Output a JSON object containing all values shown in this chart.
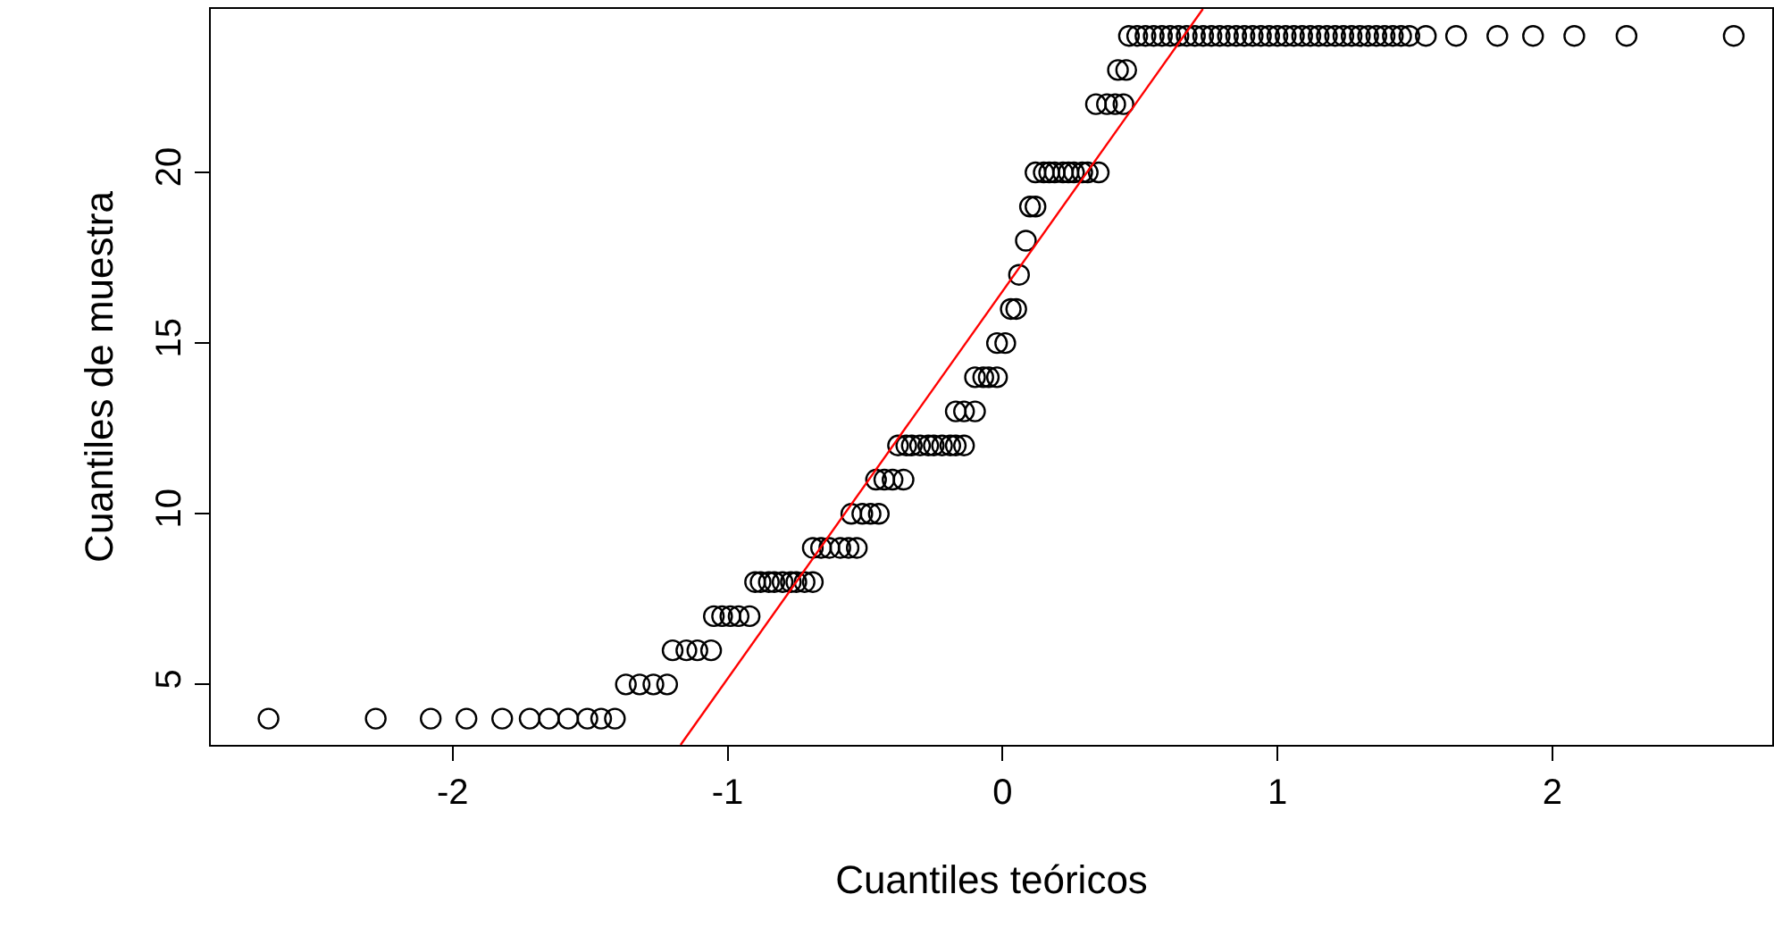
{
  "chart_data": {
    "type": "scatter",
    "xlabel": "Cuantiles teóricos",
    "ylabel": "Cuantiles de muestra",
    "xlim": [
      -2.88,
      2.8
    ],
    "ylim": [
      3.23,
      24.79
    ],
    "xticks": [
      -2,
      -1,
      0,
      1,
      2
    ],
    "yticks": [
      5,
      10,
      15,
      20
    ],
    "grid": false,
    "marker": "circle",
    "series": [
      {
        "color": "#000000",
        "x": [
          -2.67,
          -2.28,
          -2.08,
          -1.95,
          -1.82,
          -1.72,
          -1.65,
          -1.58,
          -1.51,
          -1.46,
          -1.41,
          -1.37,
          -1.32,
          -1.27,
          -1.22,
          -1.2,
          -1.15,
          -1.11,
          -1.06,
          -1.05,
          -1.02,
          -0.99,
          -0.96,
          -0.92,
          -0.9,
          -0.88,
          -0.85,
          -0.83,
          -0.8,
          -0.77,
          -0.75,
          -0.72,
          -0.69,
          -0.69,
          -0.66,
          -0.63,
          -0.59,
          -0.56,
          -0.53,
          -0.55,
          -0.51,
          -0.48,
          -0.45,
          -0.46,
          -0.43,
          -0.4,
          -0.36,
          -0.38,
          -0.35,
          -0.33,
          -0.3,
          -0.27,
          -0.25,
          -0.22,
          -0.19,
          -0.17,
          -0.14,
          -0.17,
          -0.14,
          -0.1,
          -0.1,
          -0.07,
          -0.05,
          -0.02,
          -0.02,
          0.01,
          0.03,
          0.05,
          0.06,
          0.085,
          0.1,
          0.12,
          0.12,
          0.15,
          0.17,
          0.19,
          0.22,
          0.24,
          0.26,
          0.29,
          0.31,
          0.35,
          0.34,
          0.38,
          0.41,
          0.44,
          0.42,
          0.45,
          0.46,
          0.49,
          0.52,
          0.55,
          0.58,
          0.61,
          0.64,
          0.67,
          0.7,
          0.73,
          0.76,
          0.79,
          0.82,
          0.85,
          0.88,
          0.91,
          0.94,
          0.97,
          1.0,
          1.03,
          1.06,
          1.09,
          1.12,
          1.15,
          1.18,
          1.21,
          1.24,
          1.27,
          1.3,
          1.33,
          1.36,
          1.39,
          1.42,
          1.45,
          1.48,
          1.54,
          1.65,
          1.8,
          1.93,
          2.08,
          2.27,
          2.66
        ],
        "values": [
          4,
          4,
          4,
          4,
          4,
          4,
          4,
          4,
          4,
          4,
          4,
          5,
          5,
          5,
          5,
          6,
          6,
          6,
          6,
          7,
          7,
          7,
          7,
          7,
          8,
          8,
          8,
          8,
          8,
          8,
          8,
          8,
          8,
          9,
          9,
          9,
          9,
          9,
          9,
          10,
          10,
          10,
          10,
          11,
          11,
          11,
          11,
          12,
          12,
          12,
          12,
          12,
          12,
          12,
          12,
          12,
          12,
          13,
          13,
          13,
          14,
          14,
          14,
          14,
          15,
          15,
          16,
          16,
          17,
          18,
          19,
          19,
          20,
          20,
          20,
          20,
          20,
          20,
          20,
          20,
          20,
          20,
          22,
          22,
          22,
          22,
          23,
          23,
          24,
          24,
          24,
          24,
          24,
          24,
          24,
          24,
          24,
          24,
          24,
          24,
          24,
          24,
          24,
          24,
          24,
          24,
          24,
          24,
          24,
          24,
          24,
          24,
          24,
          24,
          24,
          24,
          24,
          24,
          24,
          24,
          24,
          24,
          24,
          24,
          24,
          24,
          24,
          24,
          24,
          24
        ]
      },
      {
        "type": "line",
        "color": "#ff0000",
        "marker": "none",
        "line_style": "solid",
        "x": [
          -1.171,
          0.729
        ],
        "values": [
          3.23,
          24.79
        ]
      }
    ]
  }
}
